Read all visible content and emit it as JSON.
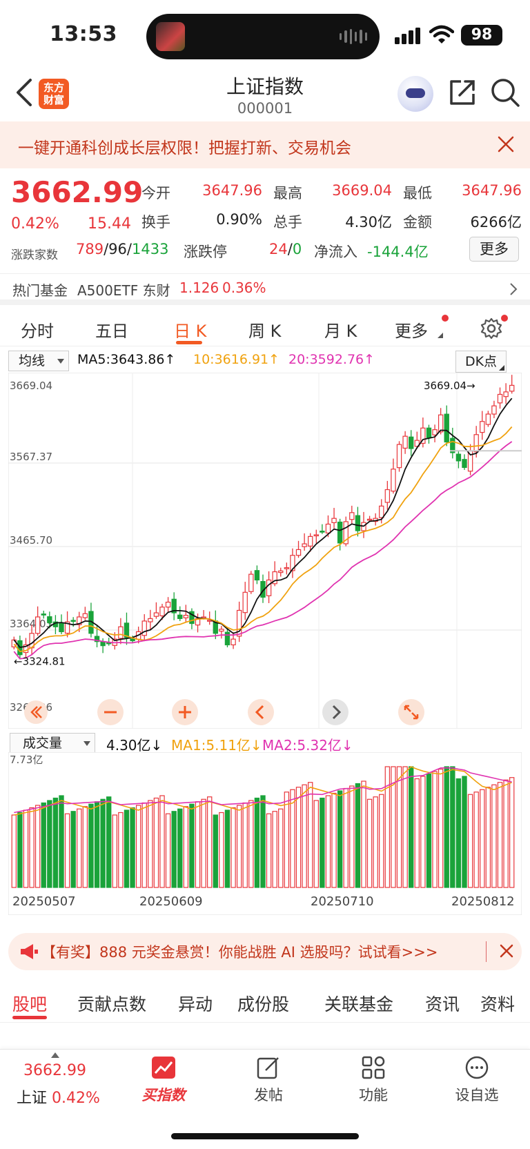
{
  "status": {
    "time": "13:53",
    "battery": "98"
  },
  "header": {
    "logo_line1": "东方",
    "logo_line2": "财富",
    "title": "上证指数",
    "code": "000001"
  },
  "banner": {
    "text": "一键开通科创成长层权限！把握打新、交易机会"
  },
  "quote": {
    "price": "3662.99",
    "pct": "0.42%",
    "change": "15.44",
    "open_label": "今开",
    "open": "3647.96",
    "high_label": "最高",
    "high": "3669.04",
    "low_label": "最低",
    "low": "3647.96",
    "turnover_label": "换手",
    "turnover": "0.90%",
    "volume_label": "总手",
    "volume": "4.30亿",
    "amount_label": "金额",
    "amount": "6266亿",
    "breadth_label": "涨跌家数",
    "up": "789",
    "flat": "96",
    "down": "1433",
    "limit_label": "涨跌停",
    "limit_up": "24",
    "limit_down": "0",
    "inflow_label": "净流入",
    "inflow": "-144.4亿",
    "more": "更多"
  },
  "fund": {
    "label": "热门基金",
    "name": "A500ETF 东财",
    "price": "1.126",
    "pct": "0.36%"
  },
  "chart_tabs": [
    "分时",
    "五日",
    "日 K",
    "周 K",
    "月 K",
    "更多"
  ],
  "ma": {
    "select": "均线",
    "ma5": "MA5:3643.86↑",
    "ma10": "10:3616.91↑",
    "ma20": "20:3592.76↑",
    "dk": "DK点"
  },
  "vol": {
    "select": "成交量",
    "value": "4.30亿↓",
    "ma1": "MA1:5.11亿↓",
    "ma2": "MA2:5.32亿↓"
  },
  "chart_data": [
    {
      "type": "candlestick",
      "ylim": [
        3262.36,
        3669.04
      ],
      "tick_labels": [
        "3669.04",
        "3567.37",
        "3465.70",
        "3364.03",
        "3262.36"
      ],
      "annotations": [
        "3669.04",
        "3324.81"
      ],
      "x_dates": [
        "20250507",
        "20250609",
        "20250710",
        "20250812"
      ],
      "series": [
        {
          "name": "MA5",
          "color": "#111111"
        },
        {
          "name": "10",
          "color": "#f0a20f"
        },
        {
          "name": "20",
          "color": "#e033b0"
        }
      ],
      "closes": [
        3352,
        3334,
        3346,
        3360,
        3380,
        3383,
        3373,
        3368,
        3362,
        3374,
        3375,
        3380,
        3384,
        3360,
        3350,
        3345,
        3348,
        3353,
        3368,
        3355,
        3351,
        3362,
        3375,
        3378,
        3385,
        3392,
        3398,
        3385,
        3378,
        3382,
        3372,
        3378,
        3380,
        3376,
        3360,
        3365,
        3346,
        3353,
        3388,
        3410,
        3432,
        3425,
        3404,
        3425,
        3435,
        3436,
        3440,
        3455,
        3462,
        3469,
        3478,
        3480,
        3484,
        3493,
        3500,
        3470,
        3496,
        3507,
        3485,
        3495,
        3499,
        3500,
        3515,
        3535,
        3560,
        3590,
        3600,
        3585,
        3595,
        3610,
        3598,
        3608,
        3626,
        3593,
        3580,
        3570,
        3562,
        3582,
        3602,
        3618,
        3627,
        3637,
        3651,
        3654,
        3662
      ],
      "volume_label": "7.73亿"
    }
  ],
  "dates": [
    "20250507",
    "20250609",
    "20250710",
    "20250812"
  ],
  "promo": {
    "text": "【有奖】888 元奖金悬赏！你能战胜 AI 选股吗？试试看>>>"
  },
  "section_tabs": [
    "股吧",
    "贡献点数",
    "异动",
    "成份股",
    "关联基金",
    "资讯",
    "资料"
  ],
  "bottom": {
    "price": "3662.99",
    "name": "上证",
    "pct": "0.42%",
    "nav": [
      "买指数",
      "发帖",
      "功能",
      "设自选"
    ]
  }
}
